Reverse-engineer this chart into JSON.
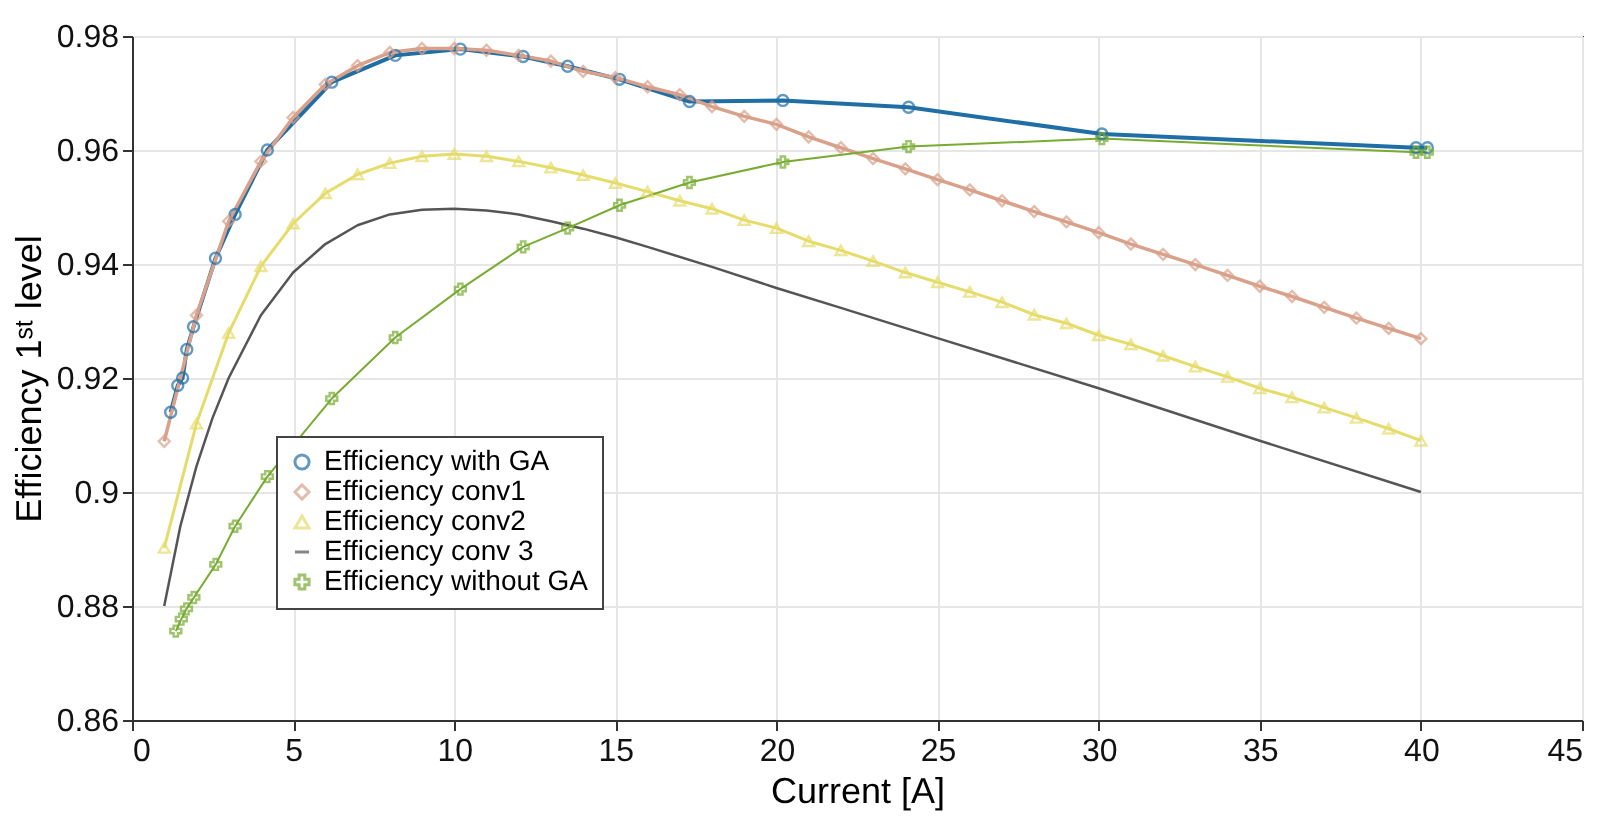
{
  "chart_data": {
    "type": "line",
    "xlabel": "Current [A]",
    "ylabel": "Efficiency 1ˢᵗ level",
    "xlim": [
      0,
      45
    ],
    "xticks": [
      0,
      5,
      10,
      15,
      20,
      25,
      30,
      35,
      40,
      45
    ],
    "ylim": [
      0.86,
      0.98
    ],
    "yticks": [
      0.86,
      0.88,
      {
        "value": 0.9,
        "label": "0.9"
      },
      0.92,
      0.94,
      0.96,
      0.98
    ],
    "grid": true,
    "legend": "bottom left",
    "line_style": "solid",
    "series": [
      {
        "name": "Efficiency with GA",
        "color": "#1f6ea6",
        "marker": "circle",
        "x": [
          1.2,
          1.42,
          1.57,
          1.7,
          1.91,
          2.59,
          3.2,
          4.2,
          6.2,
          8.17,
          10.19,
          12.14,
          13.52,
          15.13,
          17.3,
          20.2,
          24.1,
          30.1,
          39.85,
          40.2
        ],
        "values": [
          0.914,
          0.9187,
          0.92,
          0.925,
          0.929,
          0.941,
          0.9487,
          0.96,
          0.9719,
          0.9766,
          0.9777,
          0.9764,
          0.9747,
          0.9724,
          0.9685,
          0.9687,
          0.9675,
          0.9628,
          0.9604,
          0.9604
        ]
      },
      {
        "name": "Efficiency conv1",
        "color": "#d9a08a",
        "marker": "diamond",
        "x": [
          1,
          2,
          3,
          4,
          5,
          6,
          7,
          8,
          9,
          10,
          11,
          12,
          13,
          14,
          15,
          16,
          17,
          18,
          19,
          20,
          21,
          22,
          23,
          24,
          25,
          26,
          27,
          28,
          29,
          30,
          31,
          32,
          33,
          34,
          35,
          36,
          37,
          38,
          39,
          40
        ],
        "values": [
          0.9089,
          0.931,
          0.9475,
          0.958,
          0.9657,
          0.9715,
          0.9748,
          0.9771,
          0.9778,
          0.9778,
          0.9775,
          0.9766,
          0.9756,
          0.9738,
          0.9727,
          0.9711,
          0.9697,
          0.9676,
          0.9659,
          0.9645,
          0.9623,
          0.9604,
          0.9585,
          0.9567,
          0.9548,
          0.953,
          0.9511,
          0.9492,
          0.9474,
          0.9455,
          0.9435,
          0.9417,
          0.9399,
          0.938,
          0.9361,
          0.9343,
          0.9324,
          0.9305,
          0.9287,
          0.9269
        ]
      },
      {
        "name": "Efficiency conv2",
        "color": "#e6dc6a",
        "marker": "triangle",
        "x": [
          1,
          2,
          3,
          4,
          5,
          6,
          7,
          8,
          9,
          10,
          11,
          12,
          13,
          14,
          15,
          16,
          17,
          18,
          19,
          20,
          21,
          22,
          23,
          24,
          25,
          26,
          27,
          28,
          29,
          30,
          31,
          32,
          33,
          34,
          35,
          36,
          37,
          38,
          39,
          40
        ],
        "values": [
          0.8902,
          0.912,
          0.9279,
          0.9396,
          0.9471,
          0.9524,
          0.9557,
          0.9577,
          0.9589,
          0.9593,
          0.9589,
          0.958,
          0.9569,
          0.9556,
          0.9542,
          0.9527,
          0.9511,
          0.9497,
          0.9477,
          0.9463,
          0.944,
          0.9424,
          0.9405,
          0.9385,
          0.9368,
          0.9351,
          0.9333,
          0.9311,
          0.9296,
          0.9275,
          0.9259,
          0.9239,
          0.922,
          0.9202,
          0.9182,
          0.9166,
          0.9148,
          0.913,
          0.9111,
          0.909
        ]
      },
      {
        "name": "Efficiency conv 3",
        "color": "#555555",
        "marker": "none",
        "x": [
          1,
          1.5,
          2,
          2.5,
          3,
          4,
          5,
          6,
          7,
          8,
          9,
          10,
          11,
          12,
          13,
          14,
          15,
          16,
          18,
          20,
          22,
          25,
          30,
          35,
          40
        ],
        "values": [
          0.88,
          0.894,
          0.9045,
          0.913,
          0.92,
          0.931,
          0.9385,
          0.9435,
          0.9468,
          0.9487,
          0.9495,
          0.9497,
          0.9494,
          0.9487,
          0.9475,
          0.9462,
          0.9447,
          0.943,
          0.9395,
          0.9358,
          0.9323,
          0.927,
          0.9182,
          0.909,
          0.9
        ]
      },
      {
        "name": "Efficiency without GA",
        "color": "#77ac30",
        "marker": "cross",
        "x": [
          1.36,
          1.53,
          1.69,
          1.92,
          2.6,
          3.2,
          4.2,
          6.2,
          8.17,
          10.19,
          12.14,
          13.52,
          15.13,
          17.3,
          20.2,
          24.1,
          30.1,
          39.85,
          40.2
        ],
        "values": [
          0.8756,
          0.8777,
          0.8795,
          0.8815,
          0.8873,
          0.894,
          0.9027,
          0.9164,
          0.9271,
          0.9356,
          0.943,
          0.9463,
          0.9503,
          0.9543,
          0.9579,
          0.9606,
          0.962,
          0.9596,
          0.9596
        ]
      }
    ]
  }
}
